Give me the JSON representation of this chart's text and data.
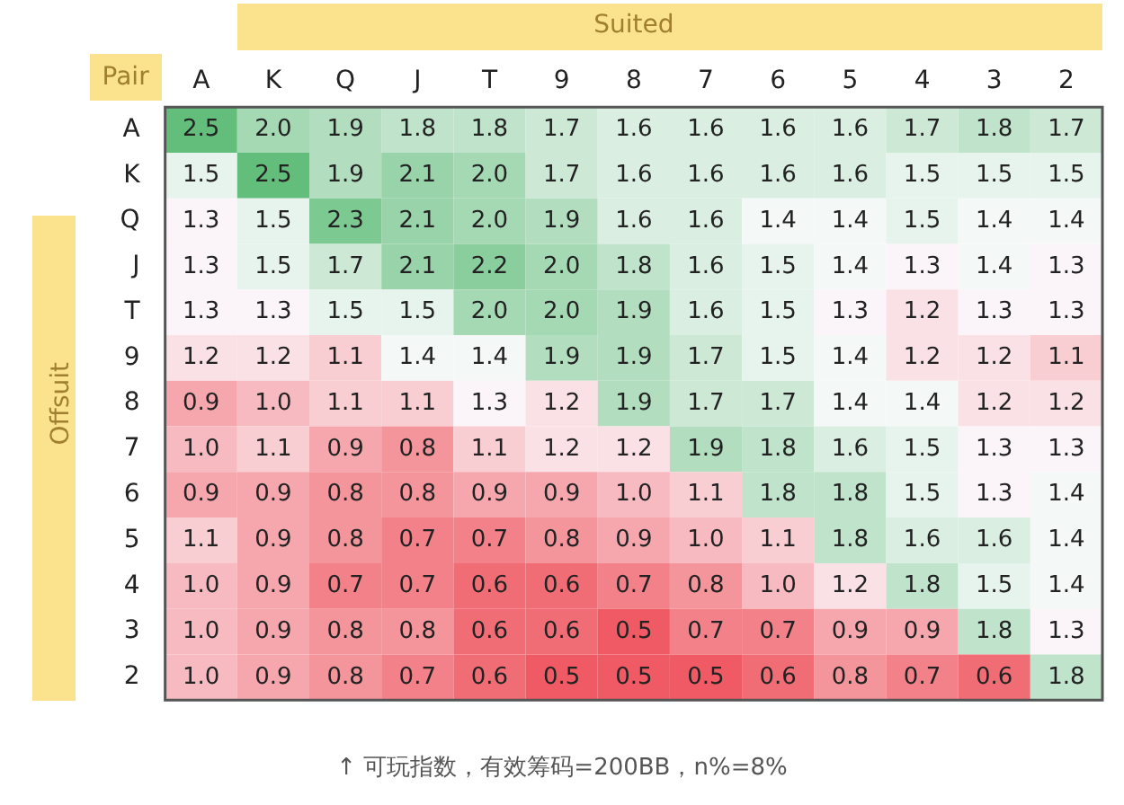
{
  "chart_data": {
    "type": "heatmap",
    "xlabel": "Suited",
    "ylabel": "Offsuit",
    "categories": [
      "A",
      "K",
      "Q",
      "J",
      "T",
      "9",
      "8",
      "7",
      "6",
      "5",
      "4",
      "3",
      "2"
    ],
    "y_categories": [
      "A",
      "K",
      "Q",
      "J",
      "T",
      "9",
      "8",
      "7",
      "6",
      "5",
      "4",
      "3",
      "2"
    ],
    "cells": [
      [
        2.5,
        2.0,
        1.9,
        1.8,
        1.8,
        1.7,
        1.6,
        1.6,
        1.6,
        1.6,
        1.7,
        1.8,
        1.7
      ],
      [
        1.5,
        2.5,
        1.9,
        2.1,
        2.0,
        1.7,
        1.6,
        1.6,
        1.6,
        1.6,
        1.5,
        1.5,
        1.5
      ],
      [
        1.3,
        1.5,
        2.3,
        2.1,
        2.0,
        1.9,
        1.6,
        1.6,
        1.4,
        1.4,
        1.5,
        1.4,
        1.4
      ],
      [
        1.3,
        1.5,
        1.7,
        2.1,
        2.2,
        2.0,
        1.8,
        1.6,
        1.5,
        1.4,
        1.3,
        1.4,
        1.3
      ],
      [
        1.3,
        1.3,
        1.5,
        1.5,
        2.0,
        2.0,
        1.9,
        1.6,
        1.5,
        1.3,
        1.2,
        1.3,
        1.3
      ],
      [
        1.2,
        1.2,
        1.1,
        1.4,
        1.4,
        1.9,
        1.9,
        1.7,
        1.5,
        1.4,
        1.2,
        1.2,
        1.1
      ],
      [
        0.9,
        1.0,
        1.1,
        1.1,
        1.3,
        1.2,
        1.9,
        1.7,
        1.7,
        1.4,
        1.4,
        1.2,
        1.2
      ],
      [
        1.0,
        1.1,
        0.9,
        0.8,
        1.1,
        1.2,
        1.2,
        1.9,
        1.8,
        1.6,
        1.5,
        1.3,
        1.3
      ],
      [
        0.9,
        0.9,
        0.8,
        0.8,
        0.9,
        0.9,
        1.0,
        1.1,
        1.8,
        1.8,
        1.5,
        1.3,
        1.4
      ],
      [
        1.1,
        0.9,
        0.8,
        0.7,
        0.7,
        0.8,
        0.9,
        1.0,
        1.1,
        1.8,
        1.6,
        1.6,
        1.4
      ],
      [
        1.0,
        0.9,
        0.7,
        0.7,
        0.6,
        0.6,
        0.7,
        0.8,
        1.0,
        1.2,
        1.8,
        1.5,
        1.4
      ],
      [
        1.0,
        0.9,
        0.8,
        0.8,
        0.6,
        0.6,
        0.5,
        0.7,
        0.7,
        0.9,
        0.9,
        1.8,
        1.3
      ],
      [
        1.0,
        0.9,
        0.8,
        0.7,
        0.6,
        0.5,
        0.5,
        0.5,
        0.6,
        0.8,
        0.7,
        0.6,
        1.8
      ]
    ],
    "cell_labels": [
      [
        "2.5",
        "2.0",
        "1.9",
        "1.8",
        "1.8",
        "1.7",
        "1.6",
        "1.6",
        "1.6",
        "1.6",
        "1.7",
        "1.8",
        "1.7"
      ],
      [
        "1.5",
        "2.5",
        "1.9",
        "2.1",
        "2.0",
        "1.7",
        "1.6",
        "1.6",
        "1.6",
        "1.6",
        "1.5",
        "1.5",
        "1.5"
      ],
      [
        "1.3",
        "1.5",
        "2.3",
        "2.1",
        "2.0",
        "1.9",
        "1.6",
        "1.6",
        "1.4",
        "1.4",
        "1.5",
        "1.4",
        "1.4"
      ],
      [
        "1.3",
        "1.5",
        "1.7",
        "2.1",
        "2.2",
        "2.0",
        "1.8",
        "1.6",
        "1.5",
        "1.4",
        "1.3",
        "1.4",
        "1.3"
      ],
      [
        "1.3",
        "1.3",
        "1.5",
        "1.5",
        "2.0",
        "2.0",
        "1.9",
        "1.6",
        "1.5",
        "1.3",
        "1.2",
        "1.3",
        "1.3"
      ],
      [
        "1.2",
        "1.2",
        "1.1",
        "1.4",
        "1.4",
        "1.9",
        "1.9",
        "1.7",
        "1.5",
        "1.4",
        "1.2",
        "1.2",
        "1.1"
      ],
      [
        "0.9",
        "1.0",
        "1.1",
        "1.1",
        "1.3",
        "1.2",
        "1.9",
        "1.7",
        "1.7",
        "1.4",
        "1.4",
        "1.2",
        "1.2"
      ],
      [
        "1.0",
        "1.1",
        "0.9",
        "0.8",
        "1.1",
        "1.2",
        "1.2",
        "1.9",
        "1.8",
        "1.6",
        "1.5",
        "1.3",
        "1.3"
      ],
      [
        "0.9",
        "0.9",
        "0.8",
        "0.8",
        "0.9",
        "0.9",
        "1.0",
        "1.1",
        "1.8",
        "1.8",
        "1.5",
        "1.3",
        "1.4"
      ],
      [
        "1.1",
        "0.9",
        "0.8",
        "0.7",
        "0.7",
        "0.8",
        "0.9",
        "1.0",
        "1.1",
        "1.8",
        "1.6",
        "1.6",
        "1.4"
      ],
      [
        "1.0",
        "0.9",
        "0.7",
        "0.7",
        "0.6",
        "0.6",
        "0.7",
        "0.8",
        "1.0",
        "1.2",
        "1.8",
        "1.5",
        "1.4"
      ],
      [
        "1.0",
        "0.9",
        "0.8",
        "0.8",
        "0.6",
        "0.6",
        "0.5",
        "0.7",
        "0.7",
        "0.9",
        "0.9",
        "1.8",
        "1.3"
      ],
      [
        "1.0",
        "0.9",
        "0.8",
        "0.7",
        "0.6",
        "0.5",
        "0.5",
        "0.5",
        "0.6",
        "0.8",
        "0.7",
        "0.6",
        "1.8"
      ]
    ],
    "data_labels": true,
    "annotations": [
      "Pair",
      "↑ 可玩指数，有效筹码=200BB，n%=8%"
    ]
  }
}
